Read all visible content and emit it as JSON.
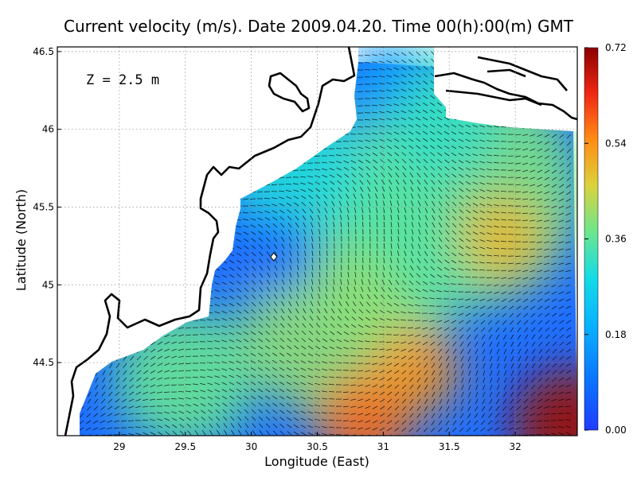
{
  "chart_data": {
    "type": "heatmap",
    "title": "Current velocity (m/s). Date 2009.04.20. Time 00(h):00(m) GMT",
    "xlabel": "Longitude (East)",
    "ylabel": "Latitude (North)",
    "annotation": "Z = 2.5 m",
    "xlim": [
      28.53,
      32.47
    ],
    "ylim": [
      44.03,
      46.53
    ],
    "x_ticks": [
      29,
      29.5,
      30,
      30.5,
      31,
      31.5,
      32
    ],
    "x_tick_labels": [
      "29",
      "29.5",
      "30",
      "30.5",
      "31",
      "31.5",
      "32"
    ],
    "y_ticks": [
      44.5,
      45,
      45.5,
      46,
      46.5
    ],
    "y_tick_labels": [
      "44.5",
      "45",
      "45.5",
      "46",
      "46.5"
    ],
    "colorbar": {
      "min": 0.0,
      "max": 0.72,
      "ticks": [
        0.0,
        0.18,
        0.36,
        0.54,
        0.72
      ],
      "tick_labels": [
        "0.00",
        "0.18",
        "0.36",
        "0.54",
        "0.72"
      ],
      "colors": [
        "#1e3cff",
        "#0aa0ff",
        "#14dce6",
        "#6ee68c",
        "#dcd23c",
        "#ff8c14",
        "#f02814",
        "#8c0000"
      ]
    },
    "grid": true,
    "velocity_regions": [
      {
        "area": "south-east corner",
        "value": 0.7
      },
      {
        "area": "south center near 30.8E 44.1N",
        "value": 0.55
      },
      {
        "area": "band near 31.2E 44.4N",
        "value": 0.5
      },
      {
        "area": "north-east near 31.9E 45.3N",
        "value": 0.45
      },
      {
        "area": "coastal near 30.2E 45.2N",
        "value": 0.05
      },
      {
        "area": "north near 31E 46.3N",
        "value": 0.1
      }
    ],
    "marker": {
      "lon": 30.17,
      "lat": 45.18
    }
  }
}
